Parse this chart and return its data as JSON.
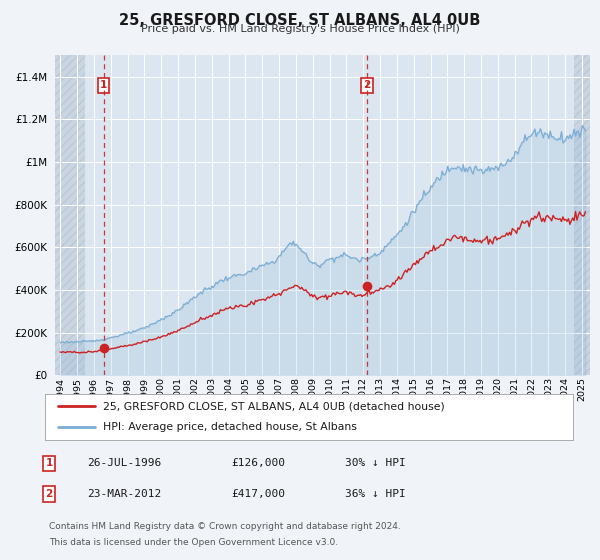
{
  "title": "25, GRESFORD CLOSE, ST ALBANS, AL4 0UB",
  "subtitle": "Price paid vs. HM Land Registry's House Price Index (HPI)",
  "bg_color": "#f0f4f8",
  "plot_bg_color": "#dce6f0",
  "hatch_color": "#c8d4e0",
  "grid_color": "#ffffff",
  "hpi_color": "#7aaed4",
  "price_color": "#cc2222",
  "sale1_date": 1996.57,
  "sale1_price": 126000,
  "sale1_label": "26-JUL-1996",
  "sale1_text": "£126,000",
  "sale1_pct": "30% ↓ HPI",
  "sale2_date": 2012.23,
  "sale2_price": 417000,
  "sale2_label": "23-MAR-2012",
  "sale2_text": "£417,000",
  "sale2_pct": "36% ↓ HPI",
  "legend_label1": "25, GRESFORD CLOSE, ST ALBANS, AL4 0UB (detached house)",
  "legend_label2": "HPI: Average price, detached house, St Albans",
  "footer1": "Contains HM Land Registry data © Crown copyright and database right 2024.",
  "footer2": "This data is licensed under the Open Government Licence v3.0.",
  "ylim_max": 1500000,
  "xlim_min": 1993.7,
  "xlim_max": 2025.5
}
